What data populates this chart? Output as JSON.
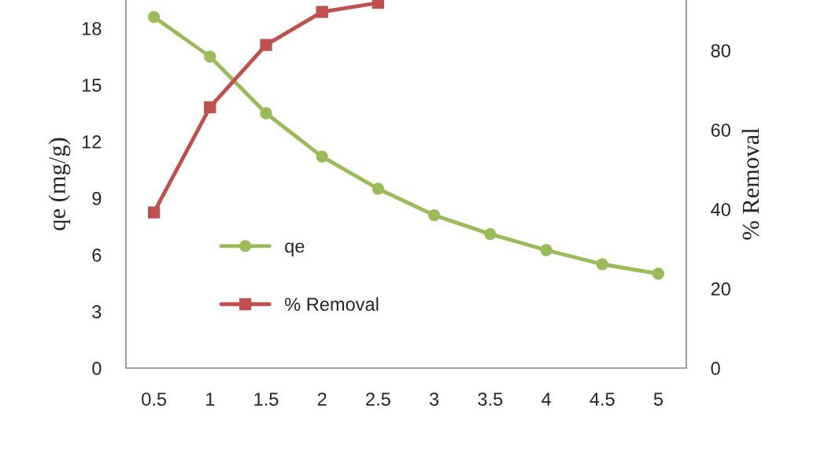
{
  "chart_data": {
    "type": "line",
    "categories": [
      "0.5",
      "1",
      "1.5",
      "2",
      "2.5",
      "3",
      "3.5",
      "4",
      "4.5",
      "5"
    ],
    "ylabel": "qe (mg/g)",
    "y2label": "% Removal",
    "ylim": [
      0,
      19.5
    ],
    "yticks": [
      0,
      3,
      6,
      9,
      12,
      15,
      18
    ],
    "y2lim": [
      0,
      92.7
    ],
    "y2ticks": [
      0,
      20,
      40,
      60,
      80
    ],
    "grid": false,
    "legend": "lower left",
    "series": [
      {
        "name": "qe",
        "color": "#9bbb59",
        "marker": "circle",
        "values": [
          18.6,
          16.5,
          13.5,
          11.2,
          9.5,
          8.1,
          7.1,
          6.25,
          5.5,
          5.0
        ]
      },
      {
        "name": "% Removal",
        "color": "#c0504d",
        "marker": "square",
        "axis": "y2",
        "values": [
          39.2,
          65.7,
          81.4,
          89.7,
          92,
          null,
          null,
          null,
          null,
          null
        ]
      }
    ]
  }
}
